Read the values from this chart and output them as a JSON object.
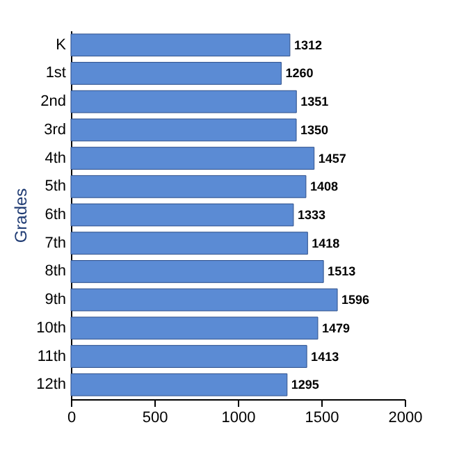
{
  "chart_data": {
    "type": "bar",
    "orientation": "horizontal",
    "ylabel": "Grades",
    "categories": [
      "K",
      "1st",
      "2nd",
      "3rd",
      "4th",
      "5th",
      "6th",
      "7th",
      "8th",
      "9th",
      "10th",
      "11th",
      "12th"
    ],
    "values": [
      1312,
      1260,
      1351,
      1350,
      1457,
      1408,
      1333,
      1418,
      1513,
      1596,
      1479,
      1413,
      1295
    ],
    "color": "#5b8bd4",
    "xlim": [
      0,
      2000
    ],
    "xticks": [
      0,
      500,
      1000,
      1500,
      2000
    ],
    "data_labels": true
  }
}
